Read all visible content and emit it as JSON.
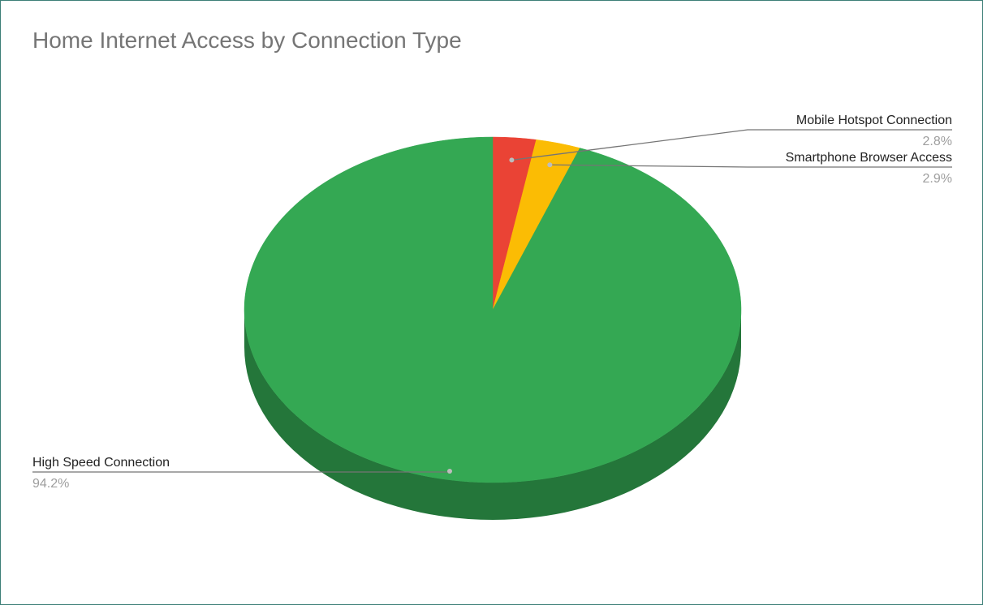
{
  "chart_data": {
    "type": "pie",
    "title": "Home Internet Access by Connection Type",
    "style": "3d",
    "slices": [
      {
        "label": "Mobile Hotspot Connection",
        "value": 2.8,
        "value_label": "2.8%",
        "color": "#ea4335",
        "side_color": "#a3302a",
        "label_side": "right"
      },
      {
        "label": "Smartphone Browser Access",
        "value": 2.9,
        "value_label": "2.9%",
        "color": "#fbbc04",
        "side_color": "#b08403",
        "label_side": "right"
      },
      {
        "label": "High Speed Connection",
        "value": 94.2,
        "value_label": "94.2%",
        "color": "#34a853",
        "side_color": "#24763a",
        "label_side": "left"
      }
    ]
  }
}
